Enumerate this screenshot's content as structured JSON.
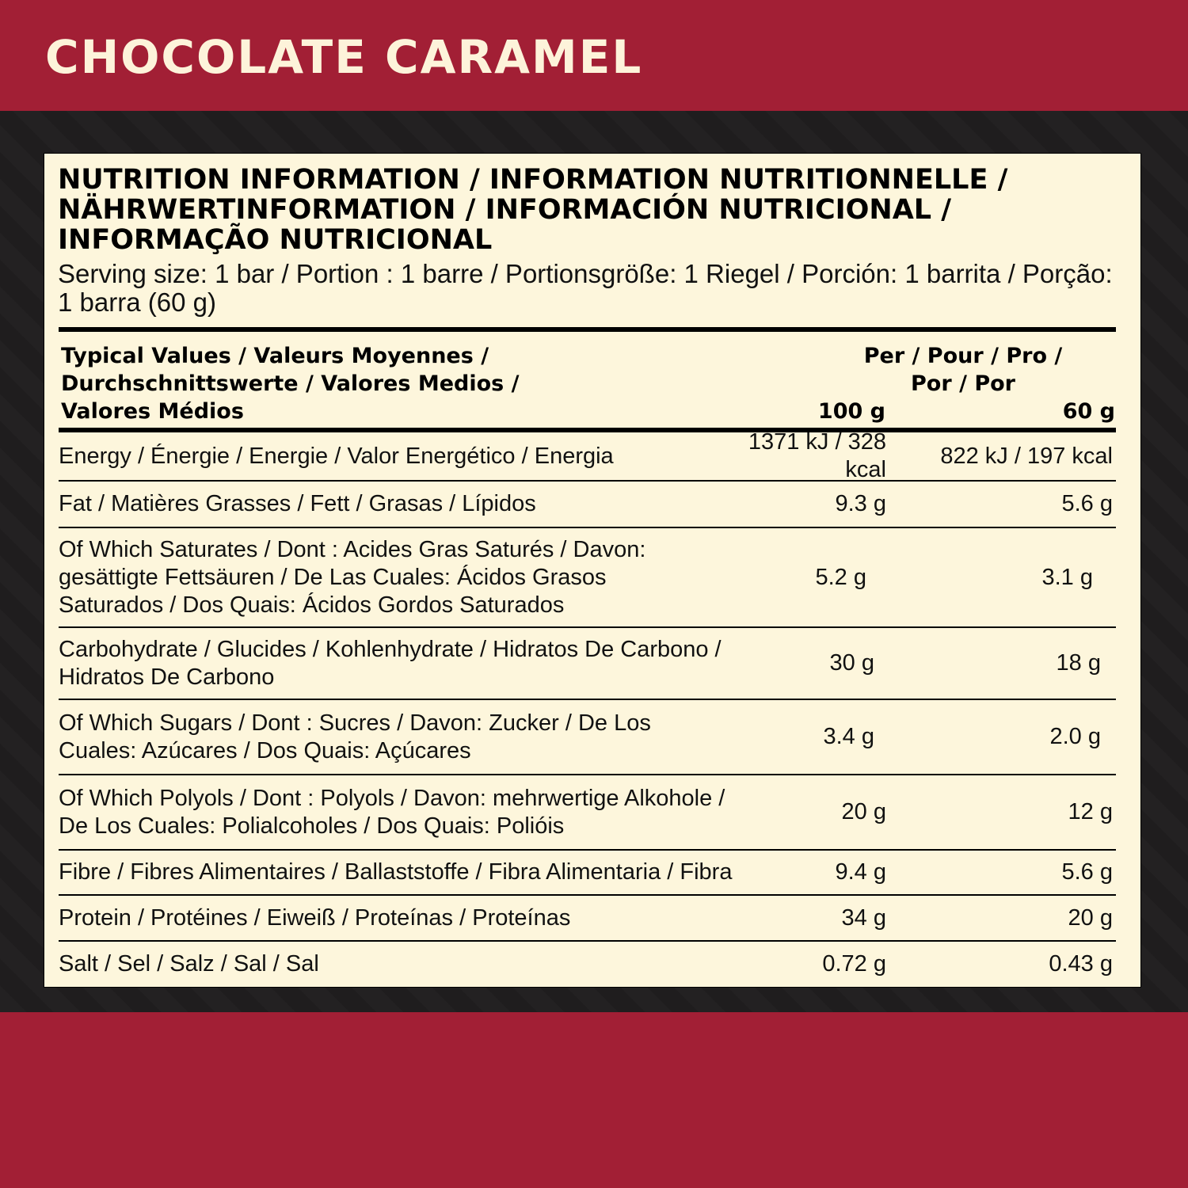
{
  "flavour": "CHOCOLATE CARAMEL",
  "colors": {
    "brand_red": "#a21f35",
    "dark": "#1e1c1d",
    "panel": "#fdf6dc",
    "title_text": "#fdf3da"
  },
  "heading": "NUTRITION INFORMATION / INFORMATION NUTRITIONNELLE / NÄHRWERTINFORMATION / INFORMACIÓN NUTRICIONAL / INFORMAÇÃO NUTRICIONAL",
  "serving": "Serving size: 1 bar / Portion : 1 barre / Portionsgröße: 1 Riegel / Porción: 1 barrita / Porção: 1 barra  (60 g)",
  "table": {
    "header_label": "Typical Values / Valeurs Moyennes / Durchschnittswerte / Valores Medios / Valores Médios",
    "per_label": "Per / Pour / Pro / Por / Por",
    "col1": "100 g",
    "col2": "60 g",
    "rows": [
      {
        "name": "Energy / Énergie / Energie / Valor Energético / Energia",
        "v100": "1371 kJ / 328 kcal",
        "vserv": "822 kJ / 197 kcal"
      },
      {
        "name": "Fat / Matières Grasses / Fett / Grasas / Lípidos",
        "v100": "9.3 g",
        "vserv": "5.6 g"
      },
      {
        "name": "Of Which Saturates / Dont : Acides Gras Saturés / Davon: gesättigte Fettsäuren / De Las Cuales: Ácidos Grasos Saturados / Dos Quais: Ácidos Gordos Saturados",
        "v100": "5.2 g",
        "vserv": "3.1 g"
      },
      {
        "name": "Carbohydrate / Glucides / Kohlenhydrate / Hidratos De Carbono / Hidratos De Carbono",
        "v100": "30 g",
        "vserv": "18 g"
      },
      {
        "name": "Of Which Sugars / Dont : Sucres / Davon: Zucker / De Los Cuales: Azúcares / Dos Quais: Açúcares",
        "v100": "3.4 g",
        "vserv": "2.0 g"
      },
      {
        "name": "Of Which Polyols / Dont : Polyols / Davon: mehrwertige Alkohole / De Los Cuales: Polialcoholes / Dos Quais: Polióis",
        "v100": "20 g",
        "vserv": "12 g"
      },
      {
        "name": "Fibre / Fibres Alimentaires / Ballaststoffe / Fibra Alimentaria / Fibra",
        "v100": "9.4 g",
        "vserv": "5.6 g"
      },
      {
        "name": "Protein / Protéines / Eiweiß / Proteínas / Proteínas",
        "v100": "34 g",
        "vserv": "20 g"
      },
      {
        "name": "Salt / Sel / Salz / Sal / Sal",
        "v100": "0.72 g",
        "vserv": "0.43 g"
      }
    ]
  }
}
